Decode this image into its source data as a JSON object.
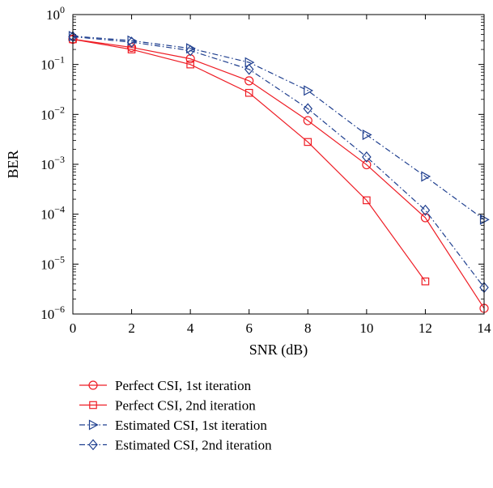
{
  "chart_data": {
    "type": "line",
    "title": "",
    "xlabel": "SNR (dB)",
    "ylabel": "BER",
    "xlim": [
      0,
      14
    ],
    "ylim_log10": [
      -6,
      0
    ],
    "y_scale": "log",
    "grid": false,
    "legend_placement": "below",
    "x_ticks": [
      {
        "value": 0,
        "label": "0"
      },
      {
        "value": 2,
        "label": "2"
      },
      {
        "value": 4,
        "label": "4"
      },
      {
        "value": 6,
        "label": "6"
      },
      {
        "value": 8,
        "label": "8"
      },
      {
        "value": 10,
        "label": "10"
      },
      {
        "value": 12,
        "label": "12"
      },
      {
        "value": 14,
        "label": "14"
      }
    ],
    "y_ticks": [
      {
        "exp": 0,
        "base": "10",
        "sup": "0"
      },
      {
        "exp": -1,
        "base": "10",
        "sup": "−1"
      },
      {
        "exp": -2,
        "base": "10",
        "sup": "−2"
      },
      {
        "exp": -3,
        "base": "10",
        "sup": "−3"
      },
      {
        "exp": -4,
        "base": "10",
        "sup": "−4"
      },
      {
        "exp": -5,
        "base": "10",
        "sup": "−5"
      },
      {
        "exp": -6,
        "base": "10",
        "sup": "−6"
      }
    ],
    "series": [
      {
        "name": "Perfect CSI, 1st iteration",
        "color": "#ee1c24",
        "dash": "solid",
        "marker": "circle",
        "x": [
          0,
          2,
          4,
          6,
          8,
          10,
          12,
          14
        ],
        "y": [
          0.32,
          0.22,
          0.13,
          0.047,
          0.0075,
          0.00098,
          8.5e-05,
          1.3e-06
        ]
      },
      {
        "name": "Perfect CSI, 2nd iteration",
        "color": "#ee1c24",
        "dash": "solid",
        "marker": "square",
        "x": [
          0,
          2,
          4,
          6,
          8,
          10,
          12
        ],
        "y": [
          0.32,
          0.2,
          0.1,
          0.027,
          0.0028,
          0.00019,
          4.5e-06
        ]
      },
      {
        "name": "Estimated CSI, 1st iteration",
        "color": "#1f3f8f",
        "dash": "dashdot",
        "marker": "triangle-right",
        "x": [
          0,
          2,
          4,
          6,
          8,
          10,
          12,
          14
        ],
        "y": [
          0.37,
          0.3,
          0.21,
          0.11,
          0.03,
          0.0039,
          0.00057,
          7.8e-05
        ]
      },
      {
        "name": "Estimated CSI, 2nd iteration",
        "color": "#1f3f8f",
        "dash": "dashdot",
        "marker": "diamond",
        "x": [
          0,
          2,
          4,
          6,
          8,
          10,
          12,
          14
        ],
        "y": [
          0.36,
          0.28,
          0.19,
          0.08,
          0.013,
          0.0014,
          0.00012,
          3.4e-06
        ]
      }
    ]
  }
}
